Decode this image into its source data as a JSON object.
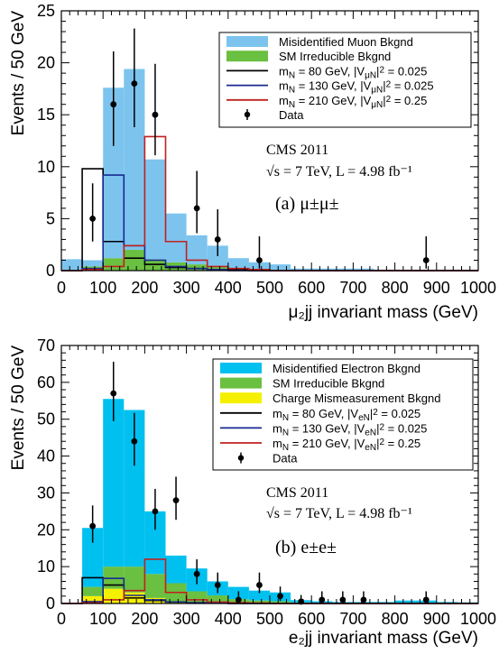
{
  "chart_data": [
    {
      "type": "bar",
      "panel_label": "(a) μ±μ±",
      "annotation_line1": "CMS 2011",
      "annotation_line2": "√s = 7 TeV, L = 4.98 fb⁻¹",
      "xlabel": "μ₂jj invariant mass (GeV)",
      "ylabel": "Events / 50 GeV",
      "xlim": [
        0,
        1000
      ],
      "ylim": [
        0,
        25
      ],
      "xticks": [
        0,
        100,
        200,
        300,
        400,
        500,
        600,
        700,
        800,
        900,
        1000
      ],
      "yticks": [
        0,
        5,
        10,
        15,
        20,
        25
      ],
      "bin_width": 50,
      "bin_edges_start": 0,
      "legend_position": "top-right",
      "stack": [
        {
          "name": "SM Irreducible Bkgnd",
          "color": "#6ac040",
          "values": [
            0,
            0.4,
            1.2,
            2.0,
            1.1,
            0.8,
            0.6,
            0.4,
            0.2,
            0.1,
            0,
            0,
            0,
            0,
            0,
            0,
            0,
            0,
            0,
            0
          ]
        },
        {
          "name": "Misidentified Muon Bkgnd",
          "color": "#7cc4ee",
          "values": [
            1.1,
            0.6,
            16.4,
            17.4,
            9.6,
            4.7,
            2.8,
            2.0,
            1.0,
            0.7,
            0.6,
            0.2,
            0.2,
            0.2,
            0.2,
            0.1,
            0.1,
            0.1,
            0.1,
            0.1
          ]
        }
      ],
      "signals": [
        {
          "name_parts": [
            "m",
            "N",
            " = 80 GeV, |V",
            "μN",
            "|",
            "2",
            " = 0.025"
          ],
          "color": "#000000",
          "values": [
            0,
            9.8,
            2.8,
            1.2,
            0.6,
            0.3,
            0.2,
            0.1,
            0.1,
            0,
            0,
            0,
            0,
            0,
            0,
            0,
            0,
            0,
            0,
            0
          ]
        },
        {
          "name_parts": [
            "m",
            "N",
            " = 130 GeV, |V",
            "μN",
            "|",
            "2",
            " = 0.025"
          ],
          "color": "#1a2a90",
          "values": [
            0,
            0.2,
            9.2,
            2.4,
            1.0,
            0.4,
            0.2,
            0.1,
            0,
            0,
            0,
            0,
            0,
            0,
            0,
            0,
            0,
            0,
            0,
            0
          ]
        },
        {
          "name_parts": [
            "m",
            "N",
            " = 210 GeV, |V",
            "μN",
            "|",
            "2",
            " = 0.25"
          ],
          "color": "#c02020",
          "values": [
            0,
            0.1,
            0.4,
            2.4,
            12.9,
            2.8,
            1.0,
            0.4,
            0.2,
            0.1,
            0,
            0,
            0,
            0,
            0,
            0,
            0,
            0,
            0,
            0
          ]
        }
      ],
      "data": {
        "name": "Data",
        "points": [
          {
            "x": 75,
            "y": 5,
            "err": [
              2.2,
              3.4
            ]
          },
          {
            "x": 125,
            "y": 16,
            "err": [
              4.0,
              5.1
            ]
          },
          {
            "x": 175,
            "y": 18,
            "err": [
              4.2,
              5.3
            ]
          },
          {
            "x": 225,
            "y": 15,
            "err": [
              3.9,
              4.9
            ]
          },
          {
            "x": 325,
            "y": 6,
            "err": [
              2.4,
              3.6
            ]
          },
          {
            "x": 375,
            "y": 3,
            "err": [
              1.6,
              2.9
            ]
          },
          {
            "x": 475,
            "y": 1,
            "err": [
              0.8,
              2.3
            ]
          },
          {
            "x": 875,
            "y": 1,
            "err": [
              0.8,
              2.3
            ]
          }
        ]
      }
    },
    {
      "type": "bar",
      "panel_label": "(b) e±e±",
      "annotation_line1": "CMS 2011",
      "annotation_line2": "√s = 7 TeV, L = 4.98 fb⁻¹",
      "xlabel": "e₂jj invariant mass (GeV)",
      "ylabel": "Events / 50 GeV",
      "xlim": [
        0,
        1000
      ],
      "ylim": [
        0,
        70
      ],
      "xticks": [
        0,
        100,
        200,
        300,
        400,
        500,
        600,
        700,
        800,
        900,
        1000
      ],
      "yticks": [
        0,
        10,
        20,
        30,
        40,
        50,
        60,
        70
      ],
      "bin_width": 50,
      "bin_edges_start": 0,
      "legend_position": "top-right",
      "stack": [
        {
          "name": "Charge Mismeasurement Bkgnd",
          "color": "#f5f000",
          "values": [
            0,
            2.0,
            4.0,
            3.0,
            1.5,
            0.5,
            0.3,
            0.2,
            0,
            0,
            0,
            0,
            0,
            0,
            0,
            0,
            0,
            0,
            0,
            0
          ]
        },
        {
          "name": "SM Irreducible Bkgnd",
          "color": "#6ac040",
          "values": [
            0,
            2.5,
            6.0,
            7.0,
            6.5,
            5.0,
            3.0,
            2.0,
            1.2,
            0.8,
            0.6,
            0.3,
            0.2,
            0.1,
            0.1,
            0.1,
            0,
            0,
            0,
            0
          ]
        },
        {
          "name": "Misidentified Electron Bkgnd",
          "color": "#00c0f0",
          "values": [
            0,
            16.0,
            45.5,
            42.5,
            17.0,
            7.5,
            6.2,
            3.8,
            3.3,
            2.7,
            2.4,
            0.6,
            0.4,
            0.3,
            0.3,
            0.3,
            0.8,
            0.8,
            0.4,
            0.3
          ]
        }
      ],
      "signals": [
        {
          "name_parts": [
            "m",
            "N",
            " = 80 GeV, |V",
            "eN",
            "|",
            "2",
            " = 0.025"
          ],
          "color": "#000000",
          "values": [
            0,
            7.0,
            5.0,
            1.5,
            0.8,
            0.4,
            0.2,
            0.1,
            0,
            0,
            0,
            0,
            0,
            0,
            0,
            0,
            0,
            0,
            0,
            0
          ]
        },
        {
          "name_parts": [
            "m",
            "N",
            " = 130 GeV, |V",
            "eN",
            "|",
            "2",
            " = 0.025"
          ],
          "color": "#1a2a90",
          "values": [
            0,
            0.5,
            6.8,
            2.2,
            1.0,
            0.4,
            0.2,
            0.1,
            0,
            0,
            0,
            0,
            0,
            0,
            0,
            0,
            0,
            0,
            0,
            0
          ]
        },
        {
          "name_parts": [
            "m",
            "N",
            " = 210 GeV, |V",
            "eN",
            "|",
            "2",
            " = 0.25"
          ],
          "color": "#c02020",
          "values": [
            0,
            0.2,
            1.0,
            3.5,
            12.0,
            3.0,
            1.0,
            0.4,
            0.2,
            0.1,
            0,
            0,
            0,
            0,
            0,
            0,
            0,
            0,
            0,
            0
          ]
        }
      ],
      "data": {
        "name": "Data",
        "points": [
          {
            "x": 75,
            "y": 21,
            "err": [
              4.5,
              5.6
            ]
          },
          {
            "x": 125,
            "y": 57,
            "err": [
              7.5,
              8.6
            ]
          },
          {
            "x": 175,
            "y": 44,
            "err": [
              6.6,
              7.7
            ]
          },
          {
            "x": 225,
            "y": 25,
            "err": [
              5.0,
              6.1
            ]
          },
          {
            "x": 275,
            "y": 28,
            "err": [
              5.3,
              6.4
            ]
          },
          {
            "x": 325,
            "y": 8,
            "err": [
              2.8,
              4.0
            ]
          },
          {
            "x": 375,
            "y": 5,
            "err": [
              2.2,
              3.4
            ]
          },
          {
            "x": 425,
            "y": 1,
            "err": [
              0.8,
              2.3
            ]
          },
          {
            "x": 475,
            "y": 5,
            "err": [
              2.2,
              3.4
            ]
          },
          {
            "x": 525,
            "y": 2,
            "err": [
              1.3,
              2.6
            ]
          },
          {
            "x": 575,
            "y": 0.5,
            "err": [
              0.5,
              1.8
            ]
          },
          {
            "x": 625,
            "y": 1,
            "err": [
              0.8,
              2.3
            ]
          },
          {
            "x": 675,
            "y": 1,
            "err": [
              0.8,
              2.3
            ]
          },
          {
            "x": 725,
            "y": 1,
            "err": [
              0.8,
              2.3
            ]
          },
          {
            "x": 875,
            "y": 1,
            "err": [
              0.8,
              2.3
            ]
          }
        ]
      }
    }
  ]
}
